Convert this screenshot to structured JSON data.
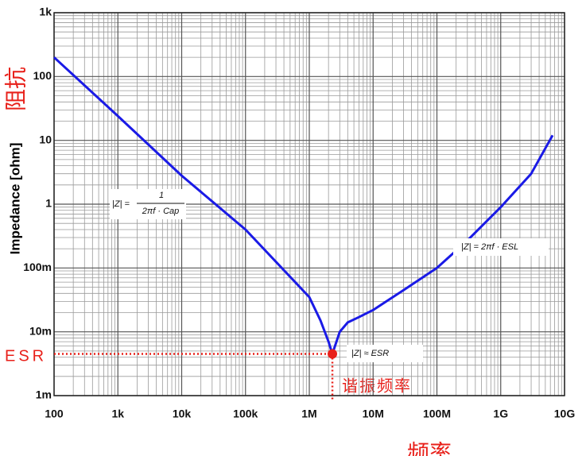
{
  "chart_data": {
    "type": "line",
    "y_label": "Impedance [ohm]",
    "y_label_cn": "阻抗",
    "x_label_cn": "频率",
    "esr_label": "ESR",
    "resonance_label": "谐振频率",
    "log_x": true,
    "log_y": true,
    "grid": true,
    "xlim": [
      100,
      10000000000
    ],
    "ylim": [
      0.001,
      1000
    ],
    "xticks": [
      {
        "value": 100,
        "label": "100"
      },
      {
        "value": 1000,
        "label": "1k"
      },
      {
        "value": 10000,
        "label": "10k"
      },
      {
        "value": 100000,
        "label": "100k"
      },
      {
        "value": 1000000,
        "label": "1M"
      },
      {
        "value": 10000000,
        "label": "10M"
      },
      {
        "value": 100000000,
        "label": "100M"
      },
      {
        "value": 1000000000,
        "label": "1G"
      },
      {
        "value": 10000000000,
        "label": "10G"
      }
    ],
    "yticks": [
      {
        "value": 0.001,
        "label": "1m"
      },
      {
        "value": 0.01,
        "label": "10m"
      },
      {
        "value": 0.1,
        "label": "100m"
      },
      {
        "value": 1,
        "label": "1"
      },
      {
        "value": 10,
        "label": "10"
      },
      {
        "value": 100,
        "label": "100"
      },
      {
        "value": 1000,
        "label": "1k"
      }
    ],
    "x": [
      100,
      1000,
      10000,
      100000,
      1000000,
      1500000,
      2000000,
      2300000,
      3000000,
      4000000,
      6000000,
      10000000,
      30000000,
      100000000,
      300000000,
      1000000000,
      3000000000,
      6500000000
    ],
    "series": [
      {
        "color": "#1a1ae6",
        "values": [
          200,
          24,
          2.8,
          0.4,
          0.035,
          0.015,
          0.007,
          0.0045,
          0.01,
          0.014,
          0.017,
          0.022,
          0.045,
          0.1,
          0.27,
          0.9,
          3,
          12
        ]
      }
    ],
    "esr_point": {
      "x": 2300000,
      "y": 0.0045,
      "color": "#e8201a"
    },
    "formulas": [
      {
        "lhs": "|Z| =",
        "num": "1",
        "den": "2πf · Cap"
      },
      {
        "lhs": "|Z| = 2πf · ESL"
      },
      {
        "lhs": "|Z| ≈ ESR"
      }
    ]
  }
}
